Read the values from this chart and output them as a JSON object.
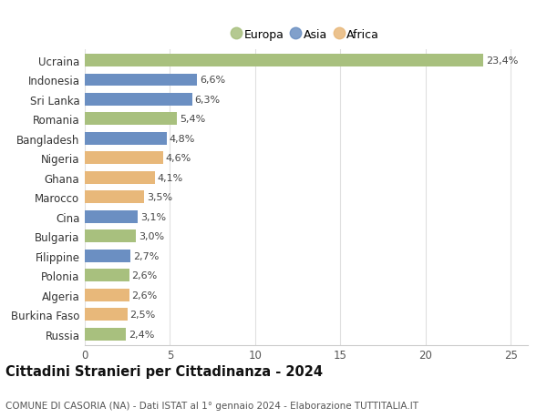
{
  "categories": [
    "Russia",
    "Burkina Faso",
    "Algeria",
    "Polonia",
    "Filippine",
    "Bulgaria",
    "Cina",
    "Marocco",
    "Ghana",
    "Nigeria",
    "Bangladesh",
    "Romania",
    "Sri Lanka",
    "Indonesia",
    "Ucraina"
  ],
  "values": [
    2.4,
    2.5,
    2.6,
    2.6,
    2.7,
    3.0,
    3.1,
    3.5,
    4.1,
    4.6,
    4.8,
    5.4,
    6.3,
    6.6,
    23.4
  ],
  "labels": [
    "2,4%",
    "2,5%",
    "2,6%",
    "2,6%",
    "2,7%",
    "3,0%",
    "3,1%",
    "3,5%",
    "4,1%",
    "4,6%",
    "4,8%",
    "5,4%",
    "6,3%",
    "6,6%",
    "23,4%"
  ],
  "colors": [
    "#a8c07e",
    "#e8b87a",
    "#e8b87a",
    "#a8c07e",
    "#6b8fc2",
    "#a8c07e",
    "#6b8fc2",
    "#e8b87a",
    "#e8b87a",
    "#e8b87a",
    "#6b8fc2",
    "#a8c07e",
    "#6b8fc2",
    "#6b8fc2",
    "#a8c07e"
  ],
  "legend_labels": [
    "Europa",
    "Asia",
    "Africa"
  ],
  "legend_colors": [
    "#a8c07e",
    "#6b8fc2",
    "#e8b87a"
  ],
  "title": "Cittadini Stranieri per Cittadinanza - 2024",
  "subtitle": "COMUNE DI CASORIA (NA) - Dati ISTAT al 1° gennaio 2024 - Elaborazione TUTTITALIA.IT",
  "xlim": [
    0,
    26
  ],
  "xticks": [
    0,
    5,
    10,
    15,
    20,
    25
  ],
  "background_color": "#ffffff",
  "grid_color": "#e0e0e0",
  "bar_height": 0.65,
  "title_fontsize": 10.5,
  "subtitle_fontsize": 7.5,
  "ytick_fontsize": 8.5,
  "xtick_fontsize": 8.5,
  "label_fontsize": 8.0
}
